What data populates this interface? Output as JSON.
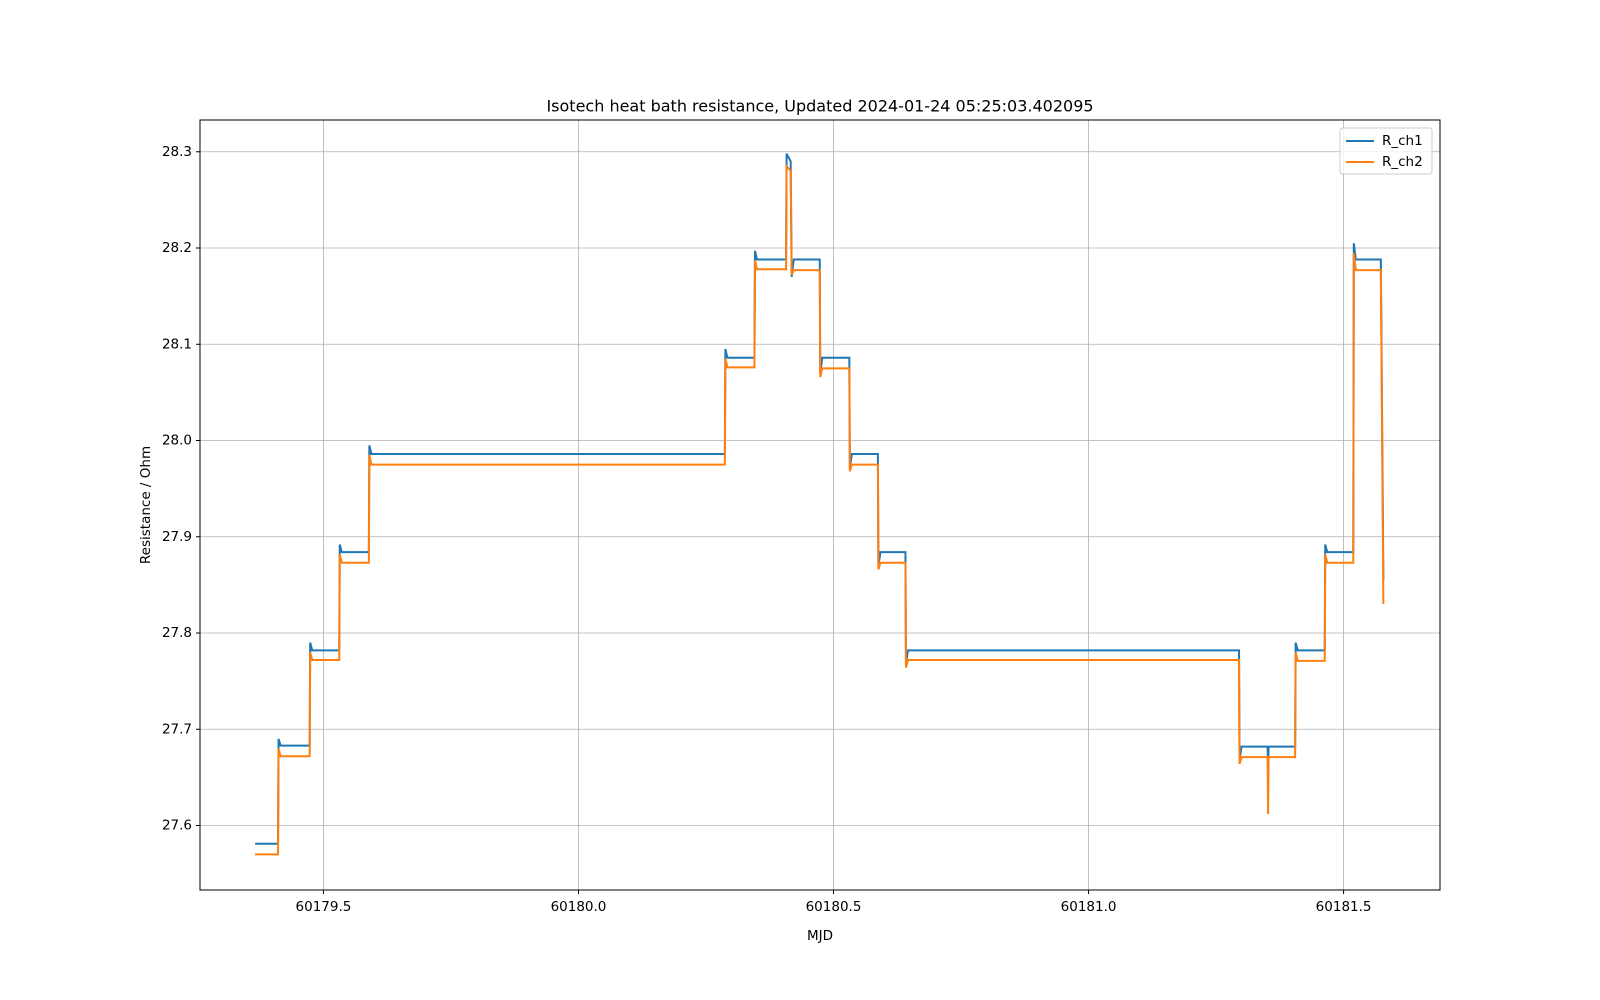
{
  "chart_data": {
    "type": "line",
    "title": "Isotech heat bath resistance, Updated 2024-01-24 05:25:03.402095",
    "xlabel": "MJD",
    "ylabel": "Resistance / Ohm",
    "x": [
      60179.366,
      60179.411,
      60179.412,
      60179.416,
      60179.473,
      60179.474,
      60179.478,
      60179.531,
      60179.532,
      60179.536,
      60179.589,
      60179.59,
      60179.594,
      60180.287,
      60180.288,
      60180.292,
      60180.345,
      60180.346,
      60180.35,
      60180.407,
      60180.408,
      60180.416,
      60180.418,
      60180.422,
      60180.473,
      60180.474,
      60180.478,
      60180.531,
      60180.532,
      60180.536,
      60180.587,
      60180.588,
      60180.592,
      60180.641,
      60180.642,
      60180.646,
      60181.295,
      60181.296,
      60181.3,
      60181.351,
      60181.352,
      60181.353,
      60181.405,
      60181.406,
      60181.41,
      60181.463,
      60181.464,
      60181.468,
      60181.519,
      60181.52,
      60181.524,
      60181.573,
      60181.578
    ],
    "series": [
      {
        "name": "R_ch1",
        "color": "#1f77b4",
        "values": [
          27.581,
          27.581,
          27.69,
          27.683,
          27.683,
          27.79,
          27.782,
          27.782,
          27.892,
          27.884,
          27.884,
          27.995,
          27.986,
          27.986,
          28.095,
          28.086,
          28.086,
          28.197,
          28.188,
          28.188,
          28.298,
          28.29,
          28.17,
          28.188,
          28.188,
          28.07,
          28.086,
          28.086,
          27.972,
          27.986,
          27.986,
          27.87,
          27.884,
          27.884,
          27.768,
          27.782,
          27.782,
          27.668,
          27.682,
          27.682,
          27.662,
          27.682,
          27.682,
          27.79,
          27.782,
          27.782,
          27.892,
          27.884,
          27.884,
          28.205,
          28.188,
          28.188,
          27.855
        ]
      },
      {
        "name": "R_ch2",
        "color": "#ff7f0e",
        "values": [
          27.57,
          27.57,
          27.68,
          27.672,
          27.672,
          27.78,
          27.772,
          27.772,
          27.882,
          27.873,
          27.873,
          27.985,
          27.975,
          27.975,
          28.085,
          28.076,
          28.076,
          28.187,
          28.178,
          28.178,
          28.285,
          28.28,
          28.172,
          28.177,
          28.177,
          28.066,
          28.075,
          28.075,
          27.968,
          27.975,
          27.975,
          27.866,
          27.873,
          27.873,
          27.764,
          27.772,
          27.772,
          27.664,
          27.671,
          27.671,
          27.612,
          27.671,
          27.671,
          27.78,
          27.771,
          27.771,
          27.882,
          27.873,
          27.873,
          28.195,
          28.177,
          28.177,
          27.83
        ]
      }
    ],
    "xlim": [
      60179.258,
      60181.689
    ],
    "ylim": [
      27.533,
      28.333
    ],
    "xticks": [
      60179.5,
      {
        "value": 60180,
        "label": "60180.0"
      },
      60180.5,
      {
        "value": 60181,
        "label": "60181.0"
      },
      60181.5
    ],
    "yticks": [
      27.6,
      27.7,
      27.8,
      27.9,
      {
        "value": 28,
        "label": "28.0"
      },
      28.1,
      28.2,
      28.3
    ],
    "grid": true,
    "legend": "upper right"
  }
}
